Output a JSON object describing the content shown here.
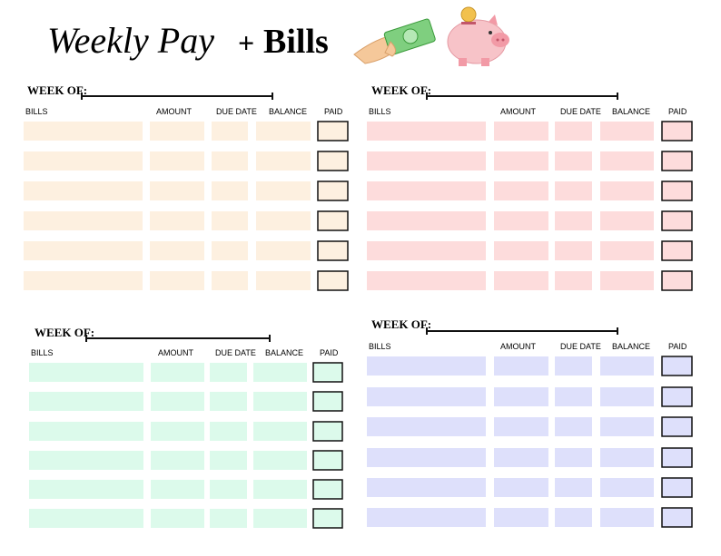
{
  "header": {
    "title_script": "Weekly Pay",
    "plus": "+",
    "title_bold": "Bills"
  },
  "sections": [
    {
      "week_label": "WEEK OF:",
      "columns": [
        "BILLS",
        "AMOUNT",
        "DUE DATE",
        "BALANCE",
        "PAID"
      ]
    },
    {
      "week_label": "WEEK OF:",
      "columns": [
        "BILLS",
        "AMOUNT",
        "DUE DATE",
        "BALANCE",
        "PAID"
      ]
    },
    {
      "week_label": "WEEK OF:",
      "columns": [
        "BILLS",
        "AMOUNT",
        "DUE DATE",
        "BALANCE",
        "PAID"
      ]
    },
    {
      "week_label": "WEEK OF:",
      "columns": [
        "BILLS",
        "AMOUNT",
        "DUE DATE",
        "BALANCE",
        "PAID"
      ]
    }
  ]
}
